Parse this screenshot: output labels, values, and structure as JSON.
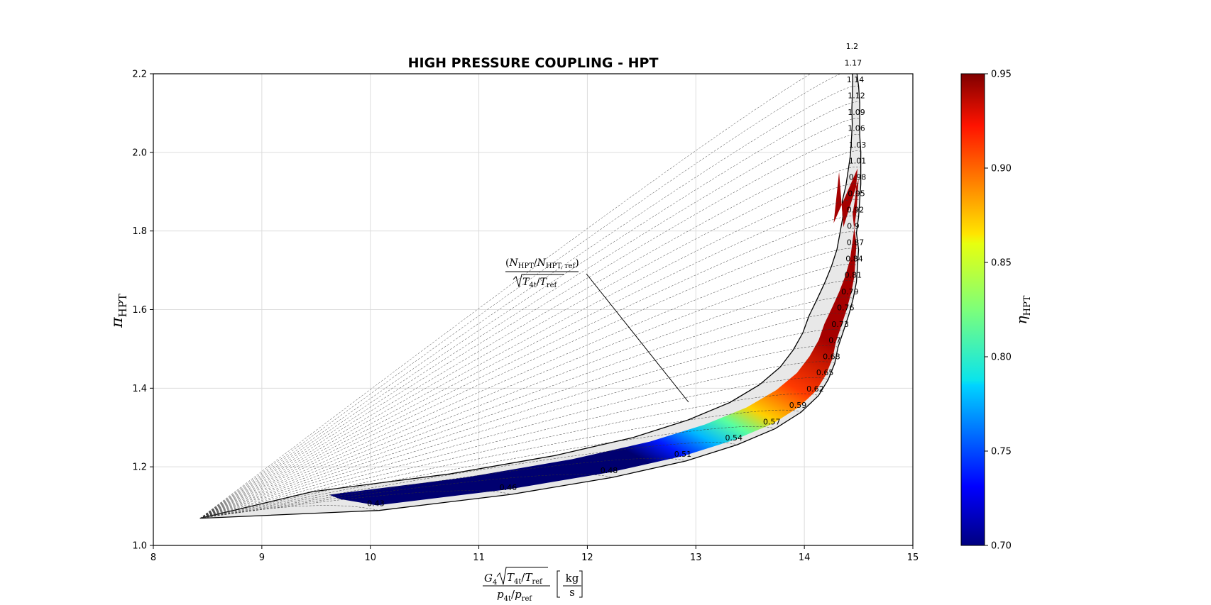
{
  "chart_data": {
    "type": "line",
    "title": "HIGH PRESSURE COUPLING - HPT",
    "xlim": [
      8,
      15
    ],
    "ylim": [
      1.0,
      2.2
    ],
    "x_ticks": [
      "8",
      "9",
      "10",
      "11",
      "12",
      "13",
      "14",
      "15"
    ],
    "y_ticks": [
      "1.0",
      "1.2",
      "1.4",
      "1.6",
      "1.8",
      "2.0",
      "2.2"
    ],
    "grid": true,
    "xlabel": {
      "numerator_base": "G",
      "numerator_sub": "4",
      "numerator_rad": "T",
      "numerator_rad_sub1": "4t",
      "numerator_rad_slash": "/",
      "numerator_rad_sub2": "ref",
      "denominator_a": "p",
      "denominator_a_sub": "4t",
      "denominator_slash": "/",
      "denominator_b": "p",
      "denominator_b_sub": "ref",
      "unit_num": "kg",
      "unit_den": "s"
    },
    "ylabel": {
      "base": "π",
      "sub": "HPT"
    },
    "colorbar": {
      "label_base": "η",
      "label_sub": "HPT",
      "range": [
        0.7,
        0.95
      ],
      "ticks": [
        "0.70",
        "0.75",
        "0.80",
        "0.85",
        "0.90",
        "0.95"
      ]
    },
    "speed_line_annotation": {
      "num_open": "(",
      "num_a": "N",
      "num_a_sub": "HPT",
      "num_slash": "/",
      "num_b": "N",
      "num_b_sub": "HPT, ref",
      "num_close": ")",
      "den_a": "T",
      "den_a_sub": "4t",
      "den_slash": "/",
      "den_b": "T",
      "den_b_sub": "ref"
    },
    "speed_lines": [
      {
        "label": "0.43",
        "x": 10.05,
        "y": 1.107
      },
      {
        "label": "0.46",
        "x": 11.27,
        "y": 1.148
      },
      {
        "label": "0.48",
        "x": 12.2,
        "y": 1.191
      },
      {
        "label": "0.51",
        "x": 12.88,
        "y": 1.233
      },
      {
        "label": "0.54",
        "x": 13.35,
        "y": 1.274
      },
      {
        "label": "0.57",
        "x": 13.7,
        "y": 1.315
      },
      {
        "label": "0.59",
        "x": 13.94,
        "y": 1.357
      },
      {
        "label": "0.62",
        "x": 14.1,
        "y": 1.399
      },
      {
        "label": "0.65",
        "x": 14.19,
        "y": 1.44
      },
      {
        "label": "0.68",
        "x": 14.25,
        "y": 1.481
      },
      {
        "label": "0.7",
        "x": 14.28,
        "y": 1.522
      },
      {
        "label": "0.73",
        "x": 14.33,
        "y": 1.563
      },
      {
        "label": "0.76",
        "x": 14.38,
        "y": 1.605
      },
      {
        "label": "0.79",
        "x": 14.42,
        "y": 1.646
      },
      {
        "label": "0.81",
        "x": 14.45,
        "y": 1.688
      },
      {
        "label": "0.84",
        "x": 14.46,
        "y": 1.73
      },
      {
        "label": "0.87",
        "x": 14.47,
        "y": 1.771
      },
      {
        "label": "0.9",
        "x": 14.45,
        "y": 1.813
      },
      {
        "label": "0.92",
        "x": 14.47,
        "y": 1.854
      },
      {
        "label": "0.95",
        "x": 14.48,
        "y": 1.896
      },
      {
        "label": "0.98",
        "x": 14.49,
        "y": 1.937
      },
      {
        "label": "1.01",
        "x": 14.49,
        "y": 1.979
      },
      {
        "label": "1.03",
        "x": 14.49,
        "y": 2.02
      },
      {
        "label": "1.06",
        "x": 14.48,
        "y": 2.062
      },
      {
        "label": "1.09",
        "x": 14.48,
        "y": 2.103
      },
      {
        "label": "1.12",
        "x": 14.48,
        "y": 2.145
      },
      {
        "label": "1.14",
        "x": 14.47,
        "y": 2.186
      },
      {
        "label": "1.17",
        "x": 14.45,
        "y": 2.228
      },
      {
        "label": "1.2",
        "x": 14.44,
        "y": 2.27
      }
    ]
  }
}
